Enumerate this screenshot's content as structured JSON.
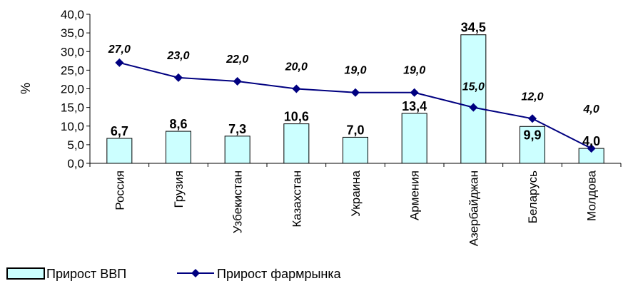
{
  "chart_data": {
    "type": "bar",
    "categories": [
      "Россия",
      "Грузия",
      "Узбекистан",
      "Казахстан",
      "Украина",
      "Армения",
      "Азербайджан",
      "Беларусь",
      "Молдова"
    ],
    "series": [
      {
        "name": "Прирост ВВП",
        "kind": "bar",
        "values": [
          6.7,
          8.6,
          7.3,
          10.6,
          7.0,
          13.4,
          34.5,
          9.9,
          4.0
        ],
        "labels": [
          "6,7",
          "8,6",
          "7,3",
          "10,6",
          "7,0",
          "13,4",
          "34,5",
          "9,9",
          "4,0"
        ]
      },
      {
        "name": "Прирост фармрынка",
        "kind": "line",
        "values": [
          27.0,
          23.0,
          22.0,
          20.0,
          19.0,
          19.0,
          15.0,
          12.0,
          4.0
        ],
        "labels": [
          "27,0",
          "23,0",
          "22,0",
          "20,0",
          "19,0",
          "19,0",
          "15,0",
          "12,0",
          "4,0"
        ]
      }
    ],
    "ylabel": "%",
    "ylim": [
      0,
      40
    ],
    "yticks": [
      "0,0",
      "5,0",
      "10,0",
      "15,0",
      "20,0",
      "25,0",
      "30,0",
      "35,0",
      "40,0"
    ],
    "grid": false,
    "legend": "bottom-left",
    "colors": {
      "bar_fill": "#ccffff",
      "bar_stroke": "#000000",
      "line": "#000080"
    }
  }
}
